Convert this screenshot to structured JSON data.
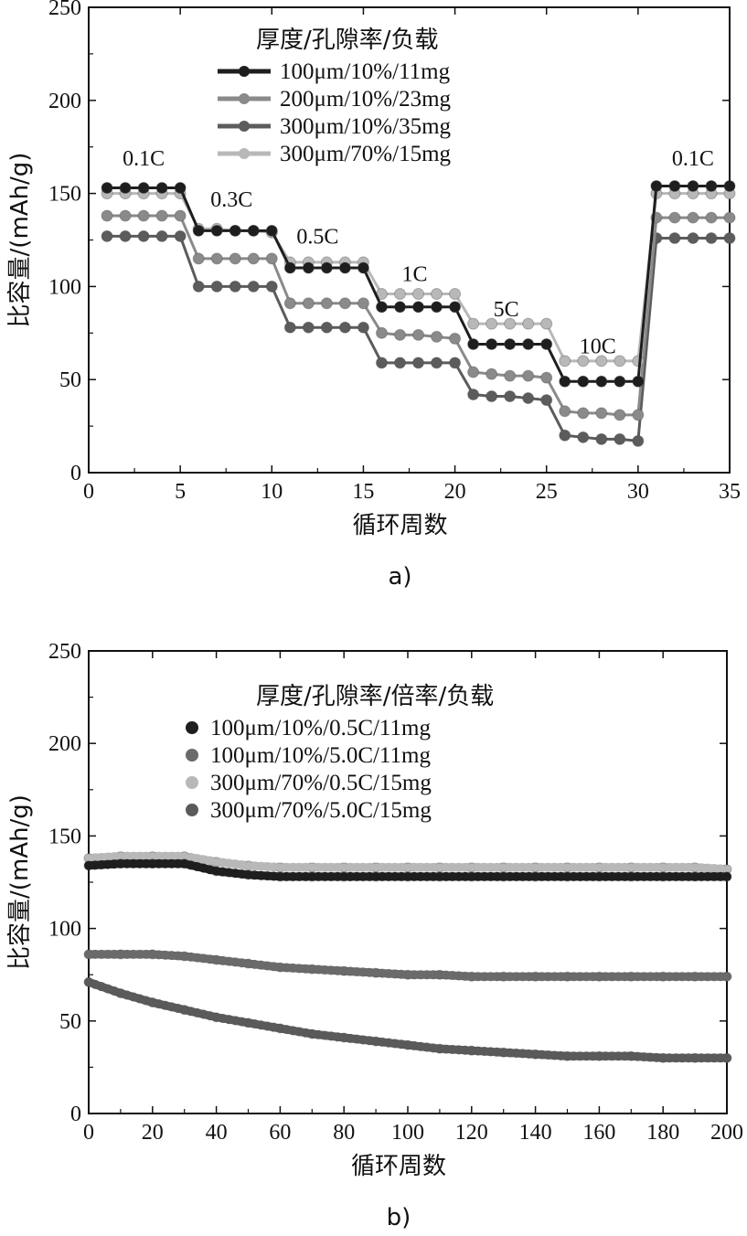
{
  "chart_data": [
    {
      "type": "line",
      "panel_label": "a)",
      "xlabel": "循环周数",
      "ylabel": "比容量/(mAh/g)",
      "xlim": [
        0,
        35
      ],
      "ylim": [
        0,
        250
      ],
      "xticks": [
        "0",
        "5",
        "10",
        "15",
        "20",
        "25",
        "30",
        "35"
      ],
      "yticks": [
        "0",
        "50",
        "100",
        "150",
        "200",
        "250"
      ],
      "grid": false,
      "legend_title": "厚度/孔隙率/负载",
      "legend_position": "top-center",
      "annotations": [
        {
          "text": "0.1C",
          "x": 3,
          "y": 165
        },
        {
          "text": "0.3C",
          "x": 7.8,
          "y": 143
        },
        {
          "text": "0.5C",
          "x": 12.5,
          "y": 123
        },
        {
          "text": "1C",
          "x": 17.8,
          "y": 103
        },
        {
          "text": "5C",
          "x": 22.8,
          "y": 84
        },
        {
          "text": "10C",
          "x": 27.8,
          "y": 64
        },
        {
          "text": "0.1C",
          "x": 33,
          "y": 165
        }
      ],
      "x": [
        1,
        2,
        3,
        4,
        5,
        6,
        7,
        8,
        9,
        10,
        11,
        12,
        13,
        14,
        15,
        16,
        17,
        18,
        19,
        20,
        21,
        22,
        23,
        24,
        25,
        26,
        27,
        28,
        29,
        30,
        31,
        32,
        33,
        34,
        35
      ],
      "series": [
        {
          "name": "100μm/10%/11mg",
          "color": "#1e1e1e",
          "values": [
            153,
            153,
            153,
            153,
            153,
            130,
            130,
            130,
            130,
            130,
            110,
            110,
            110,
            110,
            110,
            89,
            89,
            89,
            89,
            89,
            69,
            69,
            69,
            69,
            69,
            49,
            49,
            49,
            49,
            49,
            154,
            154,
            154,
            154,
            154
          ]
        },
        {
          "name": "200μm/10%/23mg",
          "color": "#8a8a8a",
          "values": [
            138,
            138,
            138,
            138,
            138,
            115,
            115,
            115,
            115,
            115,
            91,
            91,
            91,
            91,
            91,
            75,
            74,
            74,
            73,
            72,
            54,
            53,
            52,
            52,
            51,
            33,
            32,
            32,
            31,
            31,
            137,
            137,
            137,
            137,
            137
          ]
        },
        {
          "name": "300μm/10%/35mg",
          "color": "#5c5c5c",
          "values": [
            127,
            127,
            127,
            127,
            127,
            100,
            100,
            100,
            100,
            100,
            78,
            78,
            78,
            78,
            78,
            59,
            59,
            59,
            59,
            59,
            42,
            41,
            41,
            40,
            39,
            20,
            19,
            18,
            18,
            17,
            126,
            126,
            126,
            126,
            126
          ]
        },
        {
          "name": "300μm/70%/15mg",
          "color": "#b8b8b8",
          "values": [
            150,
            150,
            150,
            150,
            150,
            131,
            131,
            130,
            130,
            129,
            113,
            113,
            113,
            113,
            113,
            96,
            96,
            96,
            96,
            96,
            80,
            80,
            80,
            80,
            80,
            60,
            60,
            60,
            60,
            60,
            150,
            150,
            150,
            150,
            150
          ]
        }
      ]
    },
    {
      "type": "scatter",
      "panel_label": "b)",
      "xlabel": "循环周数",
      "ylabel": "比容量/(mAh/g)",
      "xlim": [
        0,
        200
      ],
      "ylim": [
        0,
        250
      ],
      "xticks": [
        "0",
        "20",
        "40",
        "60",
        "80",
        "100",
        "120",
        "140",
        "160",
        "180",
        "200"
      ],
      "yticks": [
        "0",
        "50",
        "100",
        "150",
        "200",
        "250"
      ],
      "grid": false,
      "legend_title": "厚度/孔隙率/倍率/负载",
      "legend_position": "top-center",
      "x": [
        0,
        10,
        20,
        30,
        40,
        50,
        60,
        70,
        80,
        90,
        100,
        110,
        120,
        130,
        140,
        150,
        160,
        170,
        180,
        190,
        200
      ],
      "series": [
        {
          "name": "100μm/10%/0.5C/11mg",
          "color": "#1e1e1e",
          "values": [
            134,
            135,
            135,
            135,
            131,
            129,
            128,
            128,
            128,
            128,
            128,
            128,
            128,
            128,
            128,
            128,
            128,
            128,
            128,
            128,
            128
          ]
        },
        {
          "name": "100μm/10%/5.0C/11mg",
          "color": "#6a6a6a",
          "values": [
            86,
            86,
            86,
            85,
            83,
            81,
            79,
            78,
            77,
            76,
            75,
            75,
            74,
            74,
            74,
            74,
            74,
            74,
            74,
            74,
            74
          ]
        },
        {
          "name": "300μm/70%/0.5C/15mg",
          "color": "#b8b8b8",
          "values": [
            138,
            139,
            139,
            139,
            136,
            134,
            133,
            133,
            133,
            133,
            133,
            133,
            133,
            133,
            133,
            133,
            133,
            133,
            133,
            133,
            132
          ]
        },
        {
          "name": "300μm/70%/5.0C/15mg",
          "color": "#5a5a5a",
          "values": [
            71,
            65,
            60,
            56,
            52,
            49,
            46,
            43,
            41,
            39,
            37,
            35,
            34,
            33,
            32,
            31,
            31,
            31,
            30,
            30,
            30
          ]
        }
      ]
    }
  ]
}
